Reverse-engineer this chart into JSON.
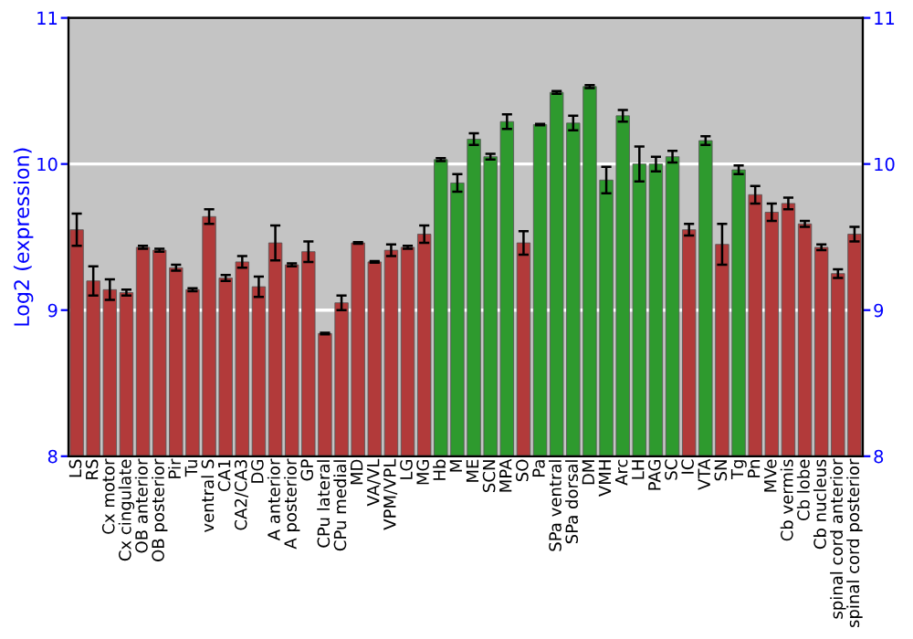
{
  "chart_data": {
    "type": "bar",
    "ylabel": "Log2 (expression)",
    "categories": [
      "LS",
      "RS",
      "Cx motor",
      "Cx cingulate",
      "OB anterior",
      "OB posterior",
      "Pir",
      "Tu",
      "ventral S",
      "CA1",
      "CA2/CA3",
      "DG",
      "A anterior",
      "A posterior",
      "GP",
      "CPu lateral",
      "CPu medial",
      "MD",
      "VA/VL",
      "VPM/VPL",
      "LG",
      "MG",
      "Hb",
      "M",
      "ME",
      "SCN",
      "MPA",
      "SO",
      "Pa",
      "SPa ventral",
      "SPa dorsal",
      "DM",
      "VMH",
      "Arc",
      "LH",
      "PAG",
      "SC",
      "IC",
      "VTA",
      "SN",
      "Tg",
      "Pn",
      "MVe",
      "Cb vermis",
      "Cb lobe",
      "Cb nucleus",
      "spinal cord anterior",
      "spinal cord posterior"
    ],
    "values": [
      9.55,
      9.2,
      9.14,
      9.12,
      9.43,
      9.41,
      9.29,
      9.14,
      9.64,
      9.22,
      9.33,
      9.16,
      9.46,
      9.31,
      9.4,
      8.84,
      9.05,
      9.46,
      9.33,
      9.41,
      9.43,
      9.52,
      10.03,
      9.87,
      10.17,
      10.05,
      10.29,
      9.46,
      10.27,
      10.49,
      10.28,
      10.53,
      9.89,
      10.33,
      10.0,
      10.0,
      10.05,
      9.55,
      10.16,
      9.45,
      9.96,
      9.79,
      9.67,
      9.73,
      9.59,
      9.43,
      9.25,
      9.52
    ],
    "errors": [
      0.11,
      0.1,
      0.07,
      0.02,
      0.01,
      0.01,
      0.02,
      0.01,
      0.05,
      0.02,
      0.04,
      0.07,
      0.12,
      0.01,
      0.07,
      0.005,
      0.05,
      0.005,
      0.005,
      0.04,
      0.01,
      0.06,
      0.01,
      0.06,
      0.04,
      0.02,
      0.05,
      0.08,
      0.005,
      0.01,
      0.05,
      0.01,
      0.09,
      0.04,
      0.12,
      0.05,
      0.04,
      0.04,
      0.03,
      0.14,
      0.03,
      0.06,
      0.06,
      0.04,
      0.02,
      0.02,
      0.03,
      0.05
    ],
    "colors": [
      "#b23a3a",
      "#b23a3a",
      "#b23a3a",
      "#b23a3a",
      "#b23a3a",
      "#b23a3a",
      "#b23a3a",
      "#b23a3a",
      "#b23a3a",
      "#b23a3a",
      "#b23a3a",
      "#b23a3a",
      "#b23a3a",
      "#b23a3a",
      "#b23a3a",
      "#b23a3a",
      "#b23a3a",
      "#b23a3a",
      "#b23a3a",
      "#b23a3a",
      "#b23a3a",
      "#b23a3a",
      "#2e9a2e",
      "#2e9a2e",
      "#2e9a2e",
      "#2e9a2e",
      "#2e9a2e",
      "#b23a3a",
      "#2e9a2e",
      "#2e9a2e",
      "#2e9a2e",
      "#2e9a2e",
      "#2e9a2e",
      "#2e9a2e",
      "#2e9a2e",
      "#2e9a2e",
      "#2e9a2e",
      "#b23a3a",
      "#2e9a2e",
      "#b23a3a",
      "#2e9a2e",
      "#b23a3a",
      "#b23a3a",
      "#b23a3a",
      "#b23a3a",
      "#b23a3a",
      "#b23a3a",
      "#b23a3a"
    ],
    "ylim": [
      8,
      11
    ],
    "yticks": [
      8,
      9,
      10,
      11
    ],
    "y2lim": [
      8,
      11
    ],
    "y2ticks": [
      8,
      9,
      10,
      11
    ],
    "grid": "y"
  }
}
